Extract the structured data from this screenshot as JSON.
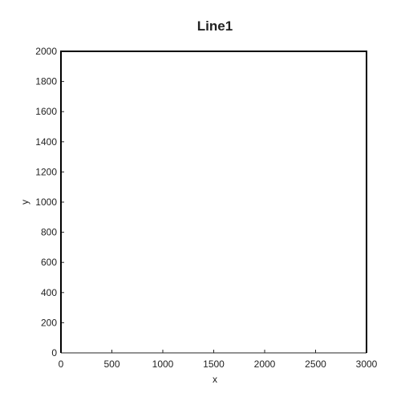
{
  "chart_data": {
    "type": "line",
    "title": "Line1",
    "xlabel": "x",
    "ylabel": "y",
    "xlim": [
      0,
      3000
    ],
    "ylim": [
      0,
      2000
    ],
    "xticks": [
      0,
      500,
      1000,
      1500,
      2000,
      2500,
      3000
    ],
    "yticks": [
      0,
      200,
      400,
      600,
      800,
      1000,
      1200,
      1400,
      1600,
      1800,
      2000
    ],
    "grid": false,
    "series": [
      {
        "x": [
          0,
          0,
          3000,
          3000
        ],
        "y": [
          0,
          2000,
          2000,
          0
        ],
        "color": "#000000"
      }
    ]
  }
}
